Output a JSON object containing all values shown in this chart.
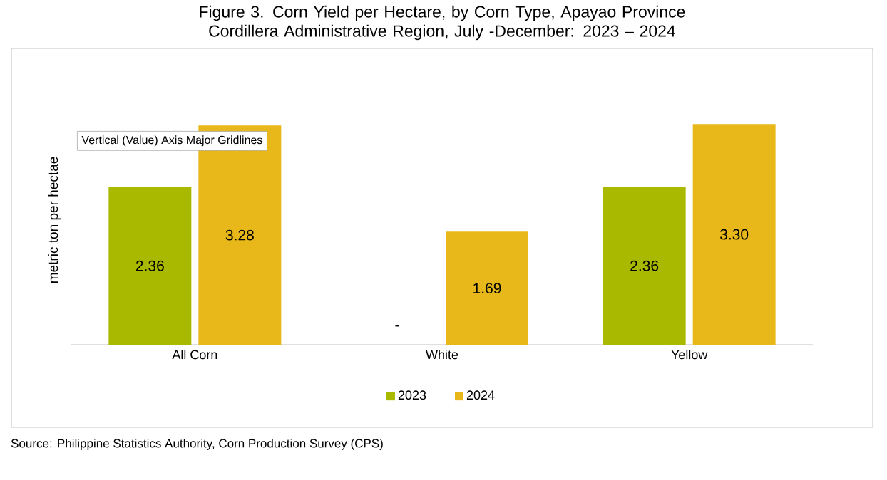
{
  "chart_data": {
    "type": "bar",
    "title": "Figure 3. Corn Yield per Hectare, by Corn Type, Apayao Province\nCordillera Administrative Region, July -December: 2023 – 2024",
    "ylabel": "metric ton per hectae",
    "categories": [
      "All Corn",
      "White",
      "Yellow"
    ],
    "data_labels": true,
    "legend": "bottom",
    "series": [
      {
        "name": "2023",
        "color": "#a9b900",
        "values": [
          2.36,
          null,
          2.36
        ],
        "value_labels": [
          "2.36",
          "-",
          "2.36"
        ]
      },
      {
        "name": "2024",
        "color": "#e8b81a",
        "values": [
          3.28,
          1.69,
          3.3
        ],
        "value_labels": [
          "3.28",
          "1.69",
          "3.30"
        ]
      }
    ],
    "annotations": [
      "Vertical (Value) Axis Major Gridlines",
      "Source: Philippine Statistics Authority, Corn Production Survey (CPS)"
    ]
  }
}
